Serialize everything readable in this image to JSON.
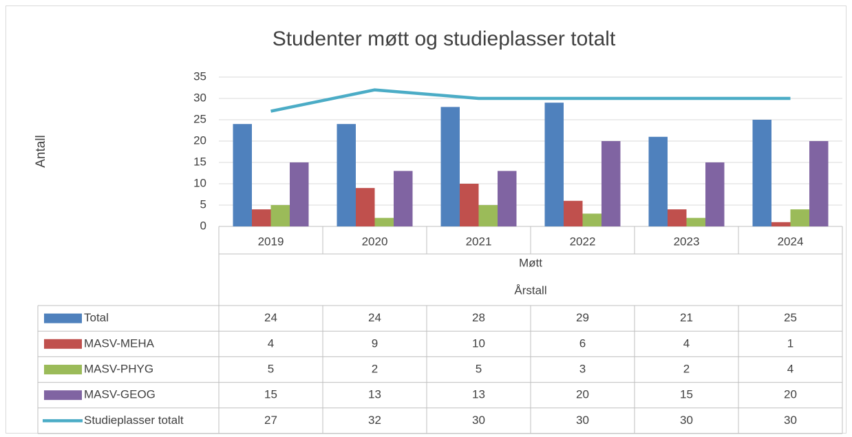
{
  "chart_data": {
    "type": "bar",
    "title": "Studenter møtt og studieplasser totalt",
    "y_label": "Antall",
    "x_sublabel": "Møtt",
    "x_label": "Årstall",
    "categories": [
      "2019",
      "2020",
      "2021",
      "2022",
      "2023",
      "2024"
    ],
    "series": [
      {
        "name": "Total",
        "color": "#4f81bd",
        "values": [
          24,
          24,
          28,
          29,
          21,
          25
        ]
      },
      {
        "name": "MASV-MEHA",
        "color": "#c0504d",
        "values": [
          4,
          9,
          10,
          6,
          4,
          1
        ]
      },
      {
        "name": "MASV-PHYG",
        "color": "#9bbb59",
        "values": [
          5,
          2,
          5,
          3,
          2,
          4
        ]
      },
      {
        "name": "MASV-GEOG",
        "color": "#8064a2",
        "values": [
          15,
          13,
          13,
          20,
          15,
          20
        ]
      },
      {
        "name": "Studieplasser totalt",
        "color": "#4bacc6",
        "type": "line",
        "values": [
          27,
          32,
          30,
          30,
          30,
          30
        ]
      }
    ],
    "ylim": [
      0,
      35
    ],
    "yticks": [
      0,
      5,
      10,
      15,
      20,
      25,
      30,
      35
    ],
    "grid": true,
    "data_table": true
  }
}
